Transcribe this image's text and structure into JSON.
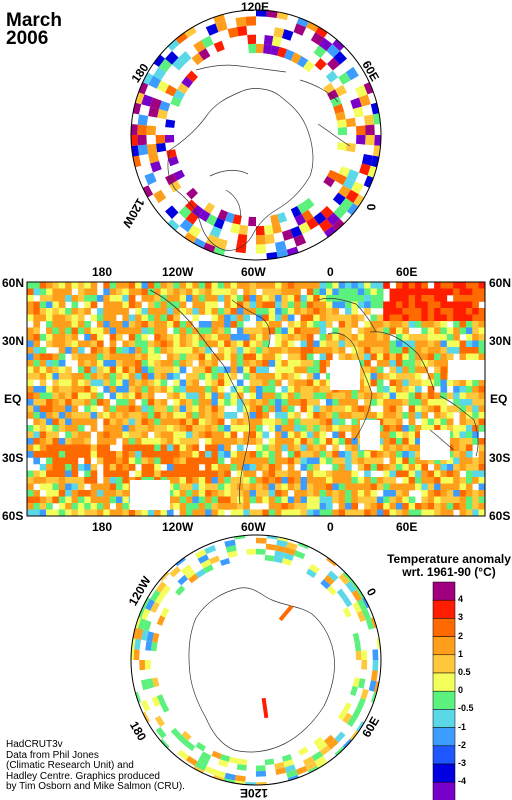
{
  "title": {
    "month": "March",
    "year": "2006"
  },
  "north_polar": {
    "labels": {
      "top": "120E",
      "upper_left": "180",
      "upper_right": "60E",
      "right": "0",
      "left": "120W"
    }
  },
  "main_map": {
    "lat_labels": [
      "60N",
      "30N",
      "EQ",
      "30S",
      "60S"
    ],
    "lon_labels": [
      "180",
      "120W",
      "60W",
      "0",
      "60E"
    ]
  },
  "south_polar": {
    "labels": {
      "upper_left": "120W",
      "upper_right": "0",
      "lower_left": "180",
      "lower_right": "60E",
      "bottom": "120E"
    }
  },
  "legend": {
    "title_line1": "Temperature anomaly",
    "title_line2": "wrt. 1961-90  (°C)",
    "ticks": [
      "4",
      "3",
      "2",
      "1",
      "0.5",
      "0",
      "-0.5",
      "-1",
      "-2",
      "-3",
      "-4"
    ],
    "colors": [
      "#a0007f",
      "#ff1d00",
      "#ff6a00",
      "#ff9e1a",
      "#ffc83c",
      "#f4ff5c",
      "#5cf07c",
      "#5ad8e8",
      "#3c9cff",
      "#1e56ff",
      "#0000e0",
      "#7800c8"
    ]
  },
  "credits": [
    "HadCRUT3v",
    "Data from Phil Jones",
    "(Climatic Research Unit) and",
    "Hadley Centre.  Graphics produced",
    "by Tim Osborn and Mike Salmon (CRU)."
  ]
}
